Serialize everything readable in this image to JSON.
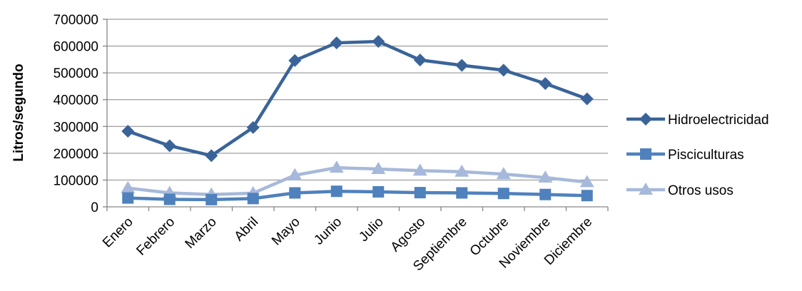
{
  "chart_data": {
    "type": "line",
    "ylabel": "Litros/segundo",
    "ylim": [
      0,
      700000
    ],
    "y_ticks": [
      "0",
      "100000",
      "200000",
      "300000",
      "400000",
      "500000",
      "600000",
      "700000"
    ],
    "categories": [
      "Enero",
      "Febrero",
      "Marzo",
      "Abril",
      "Mayo",
      "Junio",
      "Julio",
      "Agosto",
      "Septiembre",
      "Octubre",
      "Noviembre",
      "Diciembre"
    ],
    "grid": true,
    "legend_position": "right",
    "series": [
      {
        "name": "Hidroelectricidad",
        "marker": "diamond",
        "color": "#3A6499",
        "values": [
          282000,
          228000,
          191000,
          296000,
          546000,
          612000,
          617000,
          548000,
          528000,
          510000,
          460000,
          403000
        ]
      },
      {
        "name": "Pisciculturas",
        "marker": "square",
        "color": "#4F81BD",
        "values": [
          33000,
          28000,
          27000,
          31000,
          52000,
          58000,
          56000,
          53000,
          52000,
          50000,
          46000,
          42000
        ]
      },
      {
        "name": "Otros usos",
        "marker": "triangle",
        "color": "#A7B9DA",
        "values": [
          70000,
          52000,
          46000,
          51000,
          118000,
          146000,
          141000,
          135000,
          131000,
          122000,
          109000,
          92000
        ]
      }
    ]
  }
}
